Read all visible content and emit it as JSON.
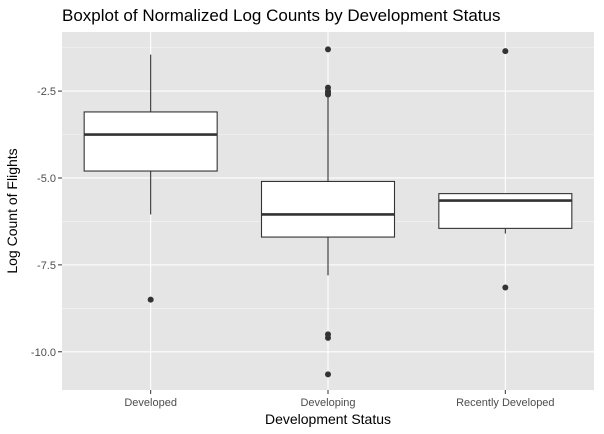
{
  "chart_data": {
    "type": "boxplot",
    "title": "Boxplot of Normalized Log Counts by Development Status",
    "xlabel": "Development Status",
    "ylabel": "Log Count of Flights",
    "ylim": [
      -11.1,
      -0.8
    ],
    "yticks": [
      -2.5,
      -5.0,
      -7.5,
      -10.0
    ],
    "ytick_labels": [
      "-2.5",
      "-5.0",
      "-7.5",
      "-10.0"
    ],
    "grid": true,
    "colors": {
      "panel": "#e5e5e5",
      "grid_major": "#ffffff",
      "box_fill": "#ffffff",
      "box_line": "#333333",
      "point": "#333333"
    },
    "categories": [
      "Developed",
      "Developing",
      "Recently Developed"
    ],
    "boxes": [
      {
        "category": "Developed",
        "whisker_low": -6.05,
        "q1": -4.8,
        "median": -3.75,
        "q3": -3.1,
        "whisker_high": -1.45,
        "outliers": [
          -8.5
        ]
      },
      {
        "category": "Developing",
        "whisker_low": -7.8,
        "q1": -6.7,
        "median": -6.05,
        "q3": -5.1,
        "whisker_high": -2.65,
        "outliers": [
          -1.3,
          -2.4,
          -2.5,
          -2.55,
          -2.6,
          -9.5,
          -9.6,
          -10.65
        ]
      },
      {
        "category": "Recently Developed",
        "whisker_low": -6.6,
        "q1": -6.45,
        "median": -5.65,
        "q3": -5.45,
        "whisker_high": -5.45,
        "outliers": [
          -1.35,
          -8.15
        ]
      }
    ]
  }
}
